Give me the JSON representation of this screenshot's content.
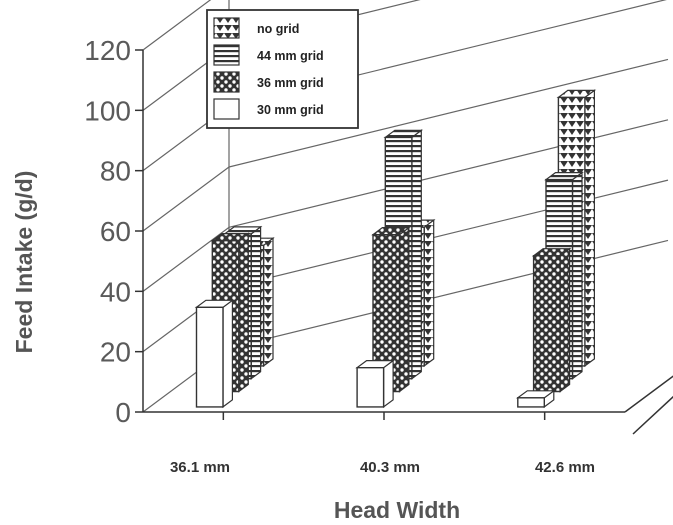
{
  "chart_data": {
    "type": "bar",
    "variant": "3d-grouped-bar",
    "xlabel": "Head Width",
    "ylabel": "Feed Intake (g/d)",
    "ylim": [
      0,
      120
    ],
    "yticks": [
      0,
      20,
      40,
      60,
      80,
      100,
      120
    ],
    "grid": true,
    "legend_position": "top-left",
    "categories": [
      "36.1 mm",
      "40.3 mm",
      "42.6 mm"
    ],
    "series": [
      {
        "name": "no grid",
        "pattern": "triangles",
        "values": [
          40,
          46,
          89
        ]
      },
      {
        "name": "44 mm grid",
        "pattern": "horizontal-stripes",
        "values": [
          48,
          80,
          66
        ]
      },
      {
        "name": "36 mm grid",
        "pattern": "dots",
        "values": [
          50,
          52,
          45
        ]
      },
      {
        "name": "30 mm grid",
        "pattern": "plain",
        "values": [
          33,
          13,
          3
        ]
      }
    ],
    "colors": {
      "ink": "#333333",
      "bar_fill": "#ffffff",
      "grid": "#666666"
    }
  }
}
